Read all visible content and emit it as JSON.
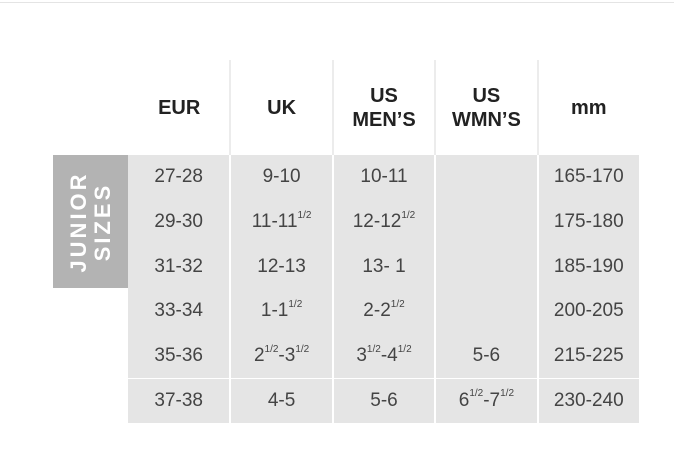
{
  "table": {
    "header": [
      [
        "EUR"
      ],
      [
        "UK"
      ],
      [
        "US",
        "MEN’S"
      ],
      [
        "US",
        "WMN’S"
      ],
      [
        "mm"
      ]
    ],
    "group_label": [
      "JUNIOR",
      "SIZES"
    ],
    "rows": [
      [
        [
          {
            "text": "27-28"
          }
        ],
        [
          {
            "text": "9-10"
          }
        ],
        [
          {
            "text": "10-11"
          }
        ],
        [],
        [
          {
            "text": "165-170"
          }
        ]
      ],
      [
        [
          {
            "text": "29-30"
          }
        ],
        [
          {
            "text": "11-11"
          },
          {
            "text": "1/2",
            "sup": true
          }
        ],
        [
          {
            "text": "12-12"
          },
          {
            "text": "1/2",
            "sup": true
          }
        ],
        [],
        [
          {
            "text": "175-180"
          }
        ]
      ],
      [
        [
          {
            "text": "31-32"
          }
        ],
        [
          {
            "text": "12-13"
          }
        ],
        [
          {
            "text": "13- 1"
          }
        ],
        [],
        [
          {
            "text": "185-190"
          }
        ]
      ],
      [
        [
          {
            "text": "33-34"
          }
        ],
        [
          {
            "text": "1-1"
          },
          {
            "text": "1/2",
            "sup": true
          }
        ],
        [
          {
            "text": "2-2"
          },
          {
            "text": "1/2",
            "sup": true
          }
        ],
        [],
        [
          {
            "text": "200-205"
          }
        ]
      ],
      [
        [
          {
            "text": "35-36"
          }
        ],
        [
          {
            "text": "2"
          },
          {
            "text": "1/2",
            "sup": true
          },
          {
            "text": "-3"
          },
          {
            "text": "1/2",
            "sup": true
          }
        ],
        [
          {
            "text": "3"
          },
          {
            "text": "1/2",
            "sup": true
          },
          {
            "text": "-4"
          },
          {
            "text": "1/2",
            "sup": true
          }
        ],
        [
          {
            "text": "5-6"
          }
        ],
        [
          {
            "text": "215-225"
          }
        ]
      ],
      [
        [
          {
            "text": "37-38"
          }
        ],
        [
          {
            "text": "4-5"
          }
        ],
        [
          {
            "text": "5-6"
          }
        ],
        [
          {
            "text": "6"
          },
          {
            "text": "1/2",
            "sup": true
          },
          {
            "text": "-7"
          },
          {
            "text": "1/2",
            "sup": true
          }
        ],
        [
          {
            "text": "230-240"
          }
        ]
      ]
    ]
  }
}
